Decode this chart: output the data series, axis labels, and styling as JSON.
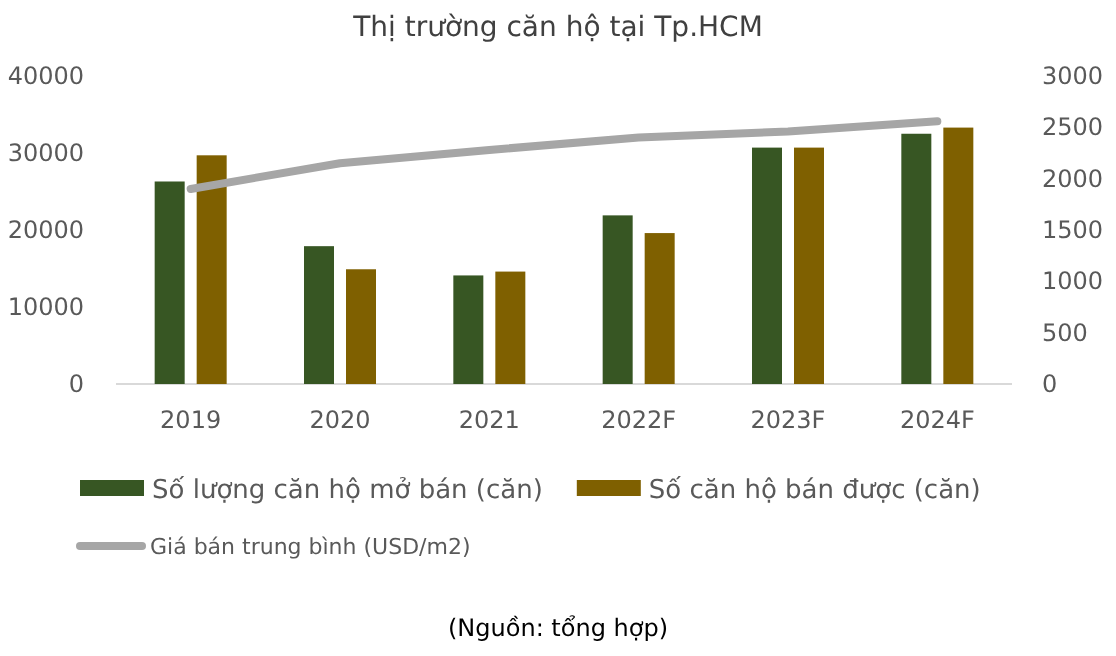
{
  "chart_data": {
    "type": "bar",
    "title": "Thị trường căn hộ tại Tp.HCM",
    "categories": [
      "2019",
      "2020",
      "2021",
      "2022F",
      "2023F",
      "2024F"
    ],
    "series": [
      {
        "name": "Số lượng căn hộ mở bán (căn)",
        "color": "#375623",
        "values": [
          26300,
          17900,
          14100,
          21900,
          30700,
          32500
        ]
      },
      {
        "name": "Số căn hộ bán được (căn)",
        "color": "#7f6000",
        "values": [
          29700,
          14900,
          14600,
          19600,
          30700,
          33300
        ]
      },
      {
        "name": "Giá bán trung bình (USD/m2)",
        "type": "line",
        "axis": "y2",
        "color": "#a6a6a6",
        "values": [
          1900,
          2150,
          2280,
          2400,
          2460,
          2560
        ]
      }
    ],
    "ylim": [
      0,
      40000
    ],
    "yticks": [
      0,
      10000,
      20000,
      30000,
      40000
    ],
    "y2lim": [
      0,
      3000
    ],
    "y2ticks": [
      0,
      500,
      1000,
      1500,
      2000,
      2500,
      3000
    ],
    "grid": false,
    "legend": "bottom",
    "marker": "none",
    "annotations": [
      "(Nguồn: tổng hợp)"
    ]
  }
}
